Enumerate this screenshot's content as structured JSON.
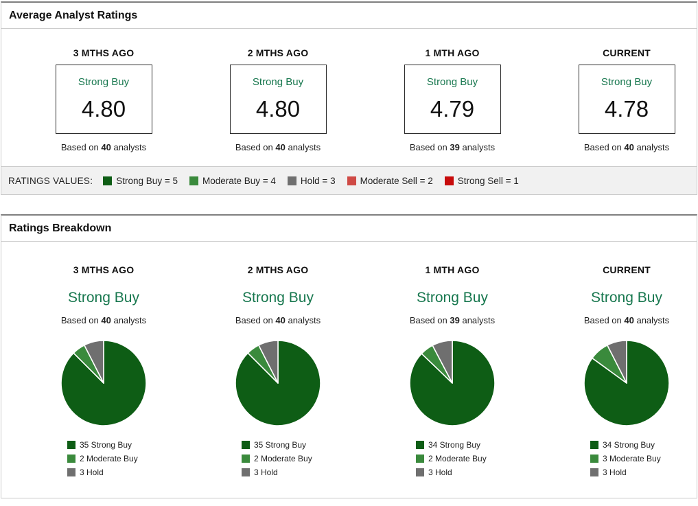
{
  "colors": {
    "strong_buy": "#0e5d15",
    "moderate_buy": "#3a8a3c",
    "hold": "#6f6f6f",
    "moderate_sell": "#cf4a45",
    "strong_sell": "#c70b0b",
    "rating_text_green": "#17774e"
  },
  "avg_panel": {
    "title": "Average Analyst Ratings",
    "periods": [
      {
        "label": "3 MTHS AGO",
        "rating": "Strong Buy",
        "value": "4.80",
        "based_prefix": "Based on",
        "analysts": "40",
        "based_suffix": "analysts"
      },
      {
        "label": "2 MTHS AGO",
        "rating": "Strong Buy",
        "value": "4.80",
        "based_prefix": "Based on",
        "analysts": "40",
        "based_suffix": "analysts"
      },
      {
        "label": "1 MTH AGO",
        "rating": "Strong Buy",
        "value": "4.79",
        "based_prefix": "Based on",
        "analysts": "39",
        "based_suffix": "analysts"
      },
      {
        "label": "CURRENT",
        "rating": "Strong Buy",
        "value": "4.78",
        "based_prefix": "Based on",
        "analysts": "40",
        "based_suffix": "analysts"
      }
    ]
  },
  "ratings_values": {
    "label": "RATINGS VALUES:",
    "items": [
      {
        "label": "Strong Buy = 5",
        "color_key": "strong_buy"
      },
      {
        "label": "Moderate Buy = 4",
        "color_key": "moderate_buy"
      },
      {
        "label": "Hold = 3",
        "color_key": "hold"
      },
      {
        "label": "Moderate Sell = 2",
        "color_key": "moderate_sell"
      },
      {
        "label": "Strong Sell = 1",
        "color_key": "strong_sell"
      }
    ]
  },
  "breakdown_panel": {
    "title": "Ratings Breakdown",
    "periods": [
      {
        "label": "3 MTHS AGO",
        "rating": "Strong Buy",
        "based_prefix": "Based on",
        "analysts": "40",
        "based_suffix": "analysts"
      },
      {
        "label": "2 MTHS AGO",
        "rating": "Strong Buy",
        "based_prefix": "Based on",
        "analysts": "40",
        "based_suffix": "analysts"
      },
      {
        "label": "1 MTH AGO",
        "rating": "Strong Buy",
        "based_prefix": "Based on",
        "analysts": "39",
        "based_suffix": "analysts"
      },
      {
        "label": "CURRENT",
        "rating": "Strong Buy",
        "based_prefix": "Based on",
        "analysts": "40",
        "based_suffix": "analysts"
      }
    ]
  },
  "chart_data": [
    {
      "type": "pie",
      "title": "3 MTHS AGO",
      "start_angle_deg": 0,
      "direction": "clockwise",
      "legend_position": "bottom",
      "total": 40,
      "slices": [
        {
          "label": "Strong Buy",
          "value": 35,
          "color_key": "strong_buy"
        },
        {
          "label": "Moderate Buy",
          "value": 2,
          "color_key": "moderate_buy"
        },
        {
          "label": "Hold",
          "value": 3,
          "color_key": "hold"
        }
      ]
    },
    {
      "type": "pie",
      "title": "2 MTHS AGO",
      "start_angle_deg": 0,
      "direction": "clockwise",
      "legend_position": "bottom",
      "total": 40,
      "slices": [
        {
          "label": "Strong Buy",
          "value": 35,
          "color_key": "strong_buy"
        },
        {
          "label": "Moderate Buy",
          "value": 2,
          "color_key": "moderate_buy"
        },
        {
          "label": "Hold",
          "value": 3,
          "color_key": "hold"
        }
      ]
    },
    {
      "type": "pie",
      "title": "1 MTH AGO",
      "start_angle_deg": 0,
      "direction": "clockwise",
      "legend_position": "bottom",
      "total": 39,
      "slices": [
        {
          "label": "Strong Buy",
          "value": 34,
          "color_key": "strong_buy"
        },
        {
          "label": "Moderate Buy",
          "value": 2,
          "color_key": "moderate_buy"
        },
        {
          "label": "Hold",
          "value": 3,
          "color_key": "hold"
        }
      ]
    },
    {
      "type": "pie",
      "title": "CURRENT",
      "start_angle_deg": 0,
      "direction": "clockwise",
      "legend_position": "bottom",
      "total": 40,
      "slices": [
        {
          "label": "Strong Buy",
          "value": 34,
          "color_key": "strong_buy"
        },
        {
          "label": "Moderate Buy",
          "value": 3,
          "color_key": "moderate_buy"
        },
        {
          "label": "Hold",
          "value": 3,
          "color_key": "hold"
        }
      ]
    }
  ]
}
